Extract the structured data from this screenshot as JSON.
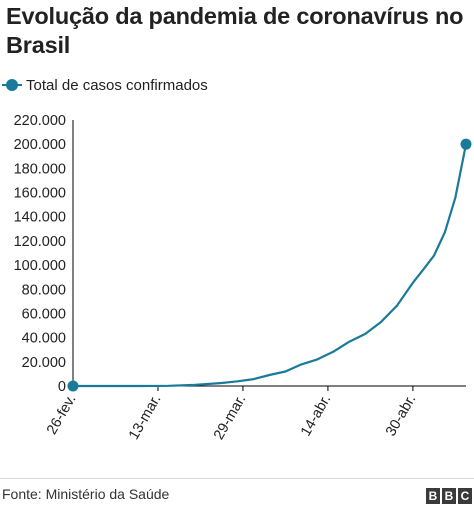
{
  "title": "Evolução da pandemia de coronavírus no Brasil",
  "legend": {
    "label": "Total de casos confirmados"
  },
  "source": "Fonte: Ministério da Saúde",
  "logo": [
    "B",
    "B",
    "C"
  ],
  "colors": {
    "series": "#1a7a9a",
    "axis": "#000000",
    "text": "#222222"
  },
  "chart_data": {
    "type": "line",
    "title": "Evolução da pandemia de coronavírus no Brasil",
    "xlabel": "",
    "ylabel": "",
    "ylim": [
      0,
      220000
    ],
    "yticks": [
      0,
      20000,
      40000,
      60000,
      80000,
      100000,
      120000,
      140000,
      160000,
      180000,
      200000,
      220000
    ],
    "ytick_labels": [
      "0",
      "20.000",
      "40.000",
      "60.000",
      "80.000",
      "100.000",
      "120.000",
      "140.000",
      "160.000",
      "180.000",
      "200.000",
      "220.000"
    ],
    "xticks": [
      "2020-02-26",
      "2020-03-13",
      "2020-03-29",
      "2020-04-14",
      "2020-04-30"
    ],
    "xtick_labels": [
      "26-fev.",
      "13-mar.",
      "29-mar.",
      "14-abr.",
      "30-abr."
    ],
    "xlim": [
      "2020-02-26",
      "2020-05-10"
    ],
    "grid": false,
    "legend": "top-left",
    "series": [
      {
        "name": "Total de casos confirmados",
        "x": [
          "2020-02-26",
          "2020-03-05",
          "2020-03-10",
          "2020-03-15",
          "2020-03-20",
          "2020-03-25",
          "2020-03-28",
          "2020-03-31",
          "2020-04-03",
          "2020-04-06",
          "2020-04-09",
          "2020-04-12",
          "2020-04-15",
          "2020-04-18",
          "2020-04-21",
          "2020-04-24",
          "2020-04-27",
          "2020-04-30",
          "2020-05-02",
          "2020-05-04",
          "2020-05-06",
          "2020-05-08",
          "2020-05-10"
        ],
        "y": [
          0,
          10,
          30,
          200,
          900,
          2500,
          3900,
          5700,
          9100,
          12000,
          17900,
          22000,
          28300,
          36600,
          43000,
          52900,
          66500,
          85400,
          96500,
          108000,
          127000,
          156000,
          200000
        ],
        "markers": "endpoints"
      }
    ]
  }
}
